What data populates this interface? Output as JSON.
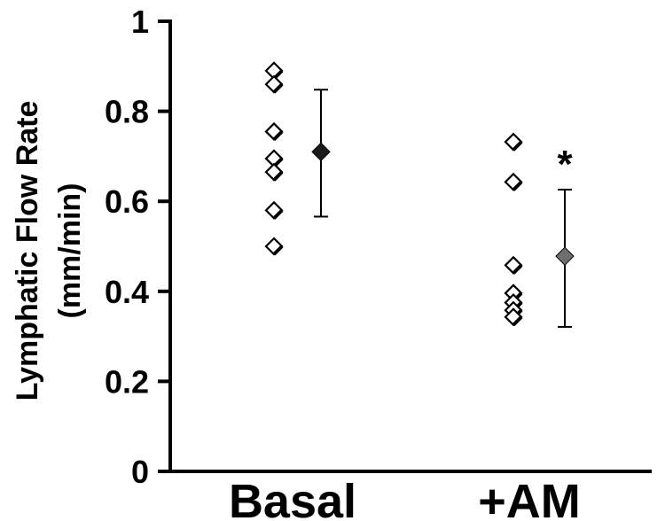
{
  "chart_data": {
    "type": "scatter",
    "title": "",
    "xlabel": "",
    "ylabel": "Lymphatic Flow Rate",
    "ylabel_unit": "(mm/min)",
    "ylim": [
      0,
      1
    ],
    "yticks": [
      "0",
      "0.2",
      "0.4",
      "0.6",
      "0.8",
      "1"
    ],
    "categories": [
      "Basal",
      "+AM"
    ],
    "groups": [
      {
        "category": "Basal",
        "points": [
          0.89,
          0.86,
          0.755,
          0.695,
          0.665,
          0.58,
          0.5
        ],
        "mean": 0.71,
        "error_high": 0.848,
        "error_low": 0.566,
        "mean_color": "#1a1a1a",
        "annotation": ""
      },
      {
        "category": "+AM",
        "points": [
          0.732,
          0.643,
          0.458,
          0.396,
          0.375,
          0.358,
          0.343
        ],
        "mean": 0.478,
        "error_high": 0.626,
        "error_low": 0.321,
        "mean_color": "#6e6e6e",
        "annotation": "*"
      }
    ],
    "grid": false,
    "legend": "none"
  }
}
